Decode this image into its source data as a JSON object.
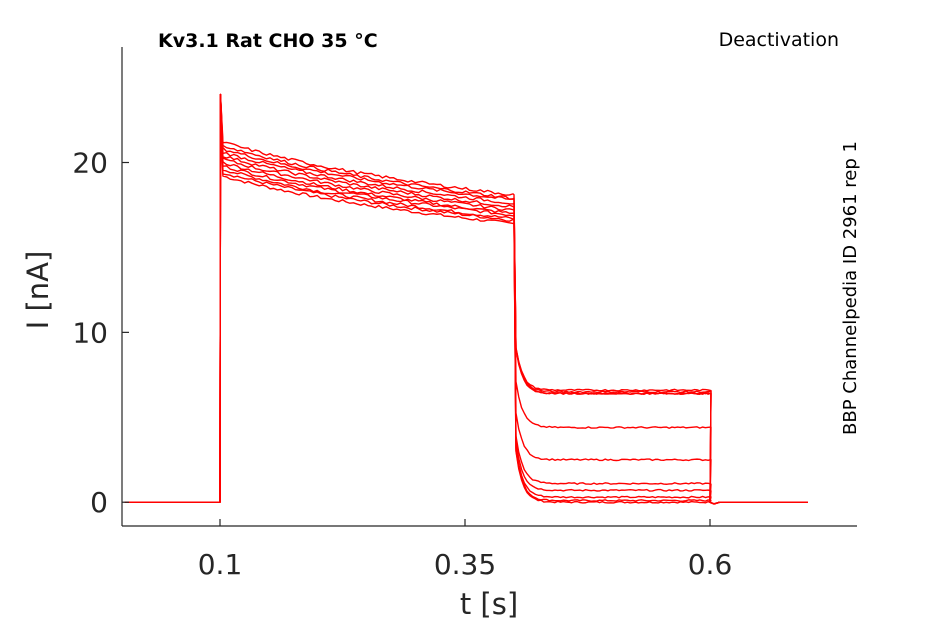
{
  "chart_data": {
    "type": "line",
    "title": "Kv3.1  Rat  CHO  35 °C",
    "subtitle": "Deactivation",
    "side_note": "BBP Channelpedia ID 2961 rep 1",
    "xlabel": "t [s]",
    "ylabel": "I [nA]",
    "xlim": [
      0.0,
      0.75
    ],
    "ylim": [
      -1.4,
      26.8
    ],
    "xticks": [
      0.1,
      0.35,
      0.6
    ],
    "xtick_labels": [
      "0.1",
      "0.35",
      "0.6"
    ],
    "yticks": [
      0,
      10,
      20
    ],
    "ytick_labels": [
      "0",
      "10",
      "20"
    ],
    "grid": false,
    "legend": "none",
    "line_color": "#ff0000",
    "protocol": {
      "t_start": 0.003,
      "t_activation_on": 0.1,
      "t_deactivation_on": 0.4,
      "t_off": 0.6,
      "t_end": 0.7
    },
    "activation_peak": 24.0,
    "series": [
      {
        "values": {
          "activation_start": 19.2,
          "activation_end": 16.4,
          "tail_steady": 0.0
        }
      },
      {
        "values": {
          "activation_start": 19.4,
          "activation_end": 16.6,
          "tail_steady": 0.1
        }
      },
      {
        "values": {
          "activation_start": 19.6,
          "activation_end": 16.7,
          "tail_steady": 0.3
        }
      },
      {
        "values": {
          "activation_start": 19.8,
          "activation_end": 16.9,
          "tail_steady": 0.7
        }
      },
      {
        "values": {
          "activation_start": 20.0,
          "activation_end": 17.0,
          "tail_steady": 1.1
        }
      },
      {
        "values": {
          "activation_start": 20.2,
          "activation_end": 17.2,
          "tail_steady": 2.5
        }
      },
      {
        "values": {
          "activation_start": 20.4,
          "activation_end": 17.4,
          "tail_steady": 4.4
        }
      },
      {
        "values": {
          "activation_start": 20.6,
          "activation_end": 17.6,
          "tail_steady": 6.4
        }
      },
      {
        "values": {
          "activation_start": 20.8,
          "activation_end": 17.8,
          "tail_steady": 6.4
        }
      },
      {
        "values": {
          "activation_start": 21.0,
          "activation_end": 17.9,
          "tail_steady": 6.5
        }
      },
      {
        "values": {
          "activation_start": 21.2,
          "activation_end": 18.1,
          "tail_steady": 6.6
        }
      }
    ]
  }
}
